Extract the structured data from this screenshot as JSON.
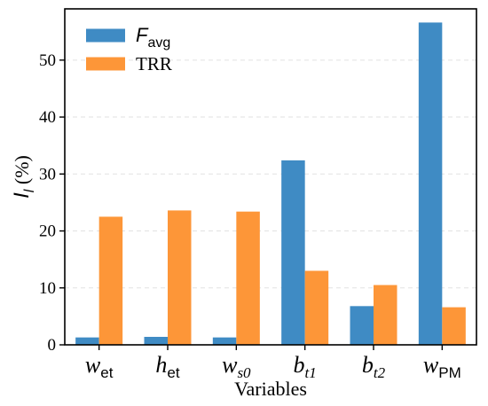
{
  "chart_data": {
    "type": "bar",
    "categories": [
      {
        "base": "w",
        "sub": "et",
        "sub_italic": false
      },
      {
        "base": "h",
        "sub": "et",
        "sub_italic": false
      },
      {
        "base": "w",
        "sub": "s0",
        "sub_italic": true
      },
      {
        "base": "b",
        "sub": "t1",
        "sub_italic": true
      },
      {
        "base": "b",
        "sub": "t2",
        "sub_italic": true
      },
      {
        "base": "w",
        "sub": "PM",
        "sub_italic": false
      }
    ],
    "series": [
      {
        "name_base": "F",
        "name_sub": "avg",
        "color": "#3f8bc4",
        "values": [
          1.3,
          1.4,
          1.3,
          32.4,
          6.8,
          56.6
        ]
      },
      {
        "name": "TRR",
        "color": "#fd9638",
        "values": [
          22.5,
          23.6,
          23.4,
          13.0,
          10.5,
          6.6
        ]
      }
    ],
    "xlabel": "Variables",
    "ylabel_base": "I",
    "ylabel_sub": "l",
    "ylabel_unit": " (%)",
    "ylim": [
      0,
      59
    ],
    "yticks": [
      0,
      10,
      20,
      30,
      40,
      50
    ],
    "grid": "horizontal-dashed",
    "legend_position": "top-left"
  }
}
